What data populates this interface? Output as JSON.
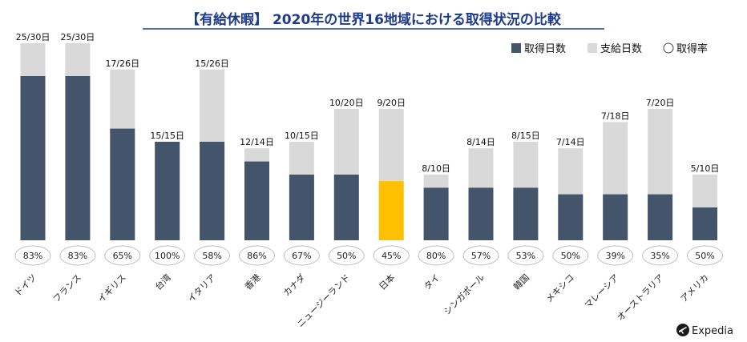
{
  "chart_data": {
    "type": "bar",
    "title": "【有給休暇】 2020年の世界16地域における取得状況の比較",
    "categories": [
      "ドイツ",
      "フランス",
      "イギリス",
      "台湾",
      "イタリア",
      "香港",
      "カナダ",
      "ニュージーランド",
      "日本",
      "タイ",
      "シンガポール",
      "韓国",
      "メキシコ",
      "マレーシア",
      "オーストラリア",
      "アメリカ"
    ],
    "series": [
      {
        "name": "取得日数",
        "values": [
          25,
          25,
          17,
          15,
          15,
          12,
          10,
          10,
          9,
          8,
          8,
          8,
          7,
          7,
          7,
          5
        ]
      },
      {
        "name": "支給日数",
        "values": [
          30,
          30,
          26,
          15,
          26,
          14,
          15,
          20,
          20,
          10,
          14,
          15,
          14,
          18,
          20,
          10
        ]
      },
      {
        "name": "取得率",
        "values": [
          "83%",
          "83%",
          "65%",
          "100%",
          "58%",
          "86%",
          "67%",
          "50%",
          "45%",
          "80%",
          "57%",
          "53%",
          "50%",
          "39%",
          "35%",
          "50%"
        ]
      }
    ],
    "data_labels": [
      "25/30日",
      "25/30日",
      "17/26日",
      "15/15日",
      "15/26日",
      "12/14日",
      "10/15日",
      "10/20日",
      "9/20日",
      "8/10日",
      "8/14日",
      "8/15日",
      "7/14日",
      "7/18日",
      "7/20日",
      "5/10日"
    ],
    "highlight_category": "日本",
    "legend_position": "top-right",
    "grid": false,
    "ylim": [
      0,
      30
    ],
    "colors": {
      "taken": "#44546a",
      "granted": "#d9d9d9",
      "highlight": "#ffc000",
      "title": "#1e3a8a",
      "rate_border": "#bfbfbf"
    }
  },
  "legend": {
    "items": [
      {
        "label": "取得日数",
        "marker": "square",
        "color": "#44546a"
      },
      {
        "label": "支給日数",
        "marker": "square",
        "color": "#d9d9d9"
      },
      {
        "label": "取得率",
        "marker": "circle",
        "color": "#ffffff"
      }
    ]
  },
  "brand": {
    "name": "Expedia",
    "icon": "airplane-icon",
    "color": "#1a1a1a"
  }
}
